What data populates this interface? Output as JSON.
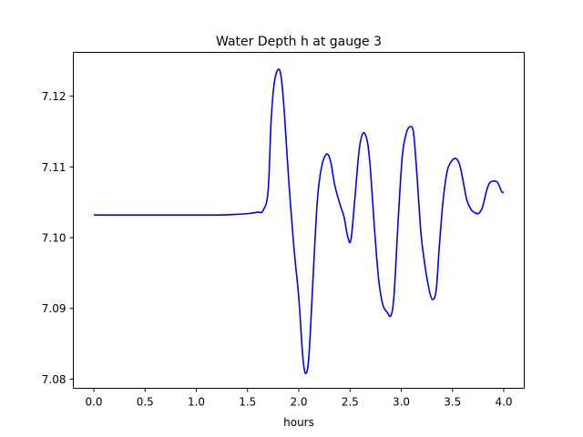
{
  "chart_data": {
    "type": "line",
    "title": "Water Depth h at gauge 3",
    "xlabel": "hours",
    "ylabel": "",
    "xlim": [
      -0.2,
      4.2
    ],
    "ylim": [
      7.0787,
      7.1262
    ],
    "xticks": [
      0.0,
      0.5,
      1.0,
      1.5,
      2.0,
      2.5,
      3.0,
      3.5,
      4.0
    ],
    "xtick_labels": [
      "0.0",
      "0.5",
      "1.0",
      "1.5",
      "2.0",
      "2.5",
      "3.0",
      "3.5",
      "4.0"
    ],
    "yticks": [
      7.08,
      7.09,
      7.1,
      7.11,
      7.12
    ],
    "ytick_labels": [
      "7.08",
      "7.09",
      "7.10",
      "7.11",
      "7.12"
    ],
    "grid": false,
    "series": [
      {
        "color": "#0000ff",
        "x": [
          0.0,
          0.3,
          0.6,
          0.9,
          1.2,
          1.4,
          1.5,
          1.6,
          1.65,
          1.7,
          1.73,
          1.76,
          1.8,
          1.83,
          1.86,
          1.9,
          1.95,
          2.0,
          2.04,
          2.07,
          2.1,
          2.14,
          2.18,
          2.22,
          2.27,
          2.31,
          2.35,
          2.4,
          2.44,
          2.48,
          2.51,
          2.55,
          2.59,
          2.63,
          2.67,
          2.7,
          2.74,
          2.78,
          2.82,
          2.86,
          2.9,
          2.93,
          2.97,
          3.01,
          3.05,
          3.09,
          3.12,
          3.15,
          3.19,
          3.22,
          3.26,
          3.3,
          3.34,
          3.37,
          3.41,
          3.45,
          3.49,
          3.53,
          3.57,
          3.61,
          3.64,
          3.68,
          3.71,
          3.75,
          3.79,
          3.83,
          3.86,
          3.9,
          3.94,
          3.98,
          4.0
        ],
        "y": [
          7.1032,
          7.1032,
          7.1032,
          7.1032,
          7.1032,
          7.1033,
          7.1034,
          7.1036,
          7.1038,
          7.1065,
          7.1165,
          7.1218,
          7.1238,
          7.1225,
          7.1175,
          7.1085,
          7.099,
          7.0915,
          7.083,
          7.0808,
          7.0835,
          7.0945,
          7.105,
          7.1098,
          7.1118,
          7.1108,
          7.1075,
          7.1048,
          7.103,
          7.1,
          7.0998,
          7.106,
          7.1125,
          7.1148,
          7.1135,
          7.1095,
          7.101,
          7.094,
          7.0905,
          7.0895,
          7.089,
          7.092,
          7.1025,
          7.1115,
          7.1148,
          7.1157,
          7.1148,
          7.1095,
          7.101,
          7.0972,
          7.0935,
          7.0913,
          7.0925,
          7.0985,
          7.1055,
          7.1095,
          7.1108,
          7.1112,
          7.1103,
          7.1075,
          7.1053,
          7.104,
          7.1036,
          7.1034,
          7.1042,
          7.1065,
          7.1077,
          7.108,
          7.1078,
          7.1065,
          7.1064
        ]
      }
    ]
  }
}
